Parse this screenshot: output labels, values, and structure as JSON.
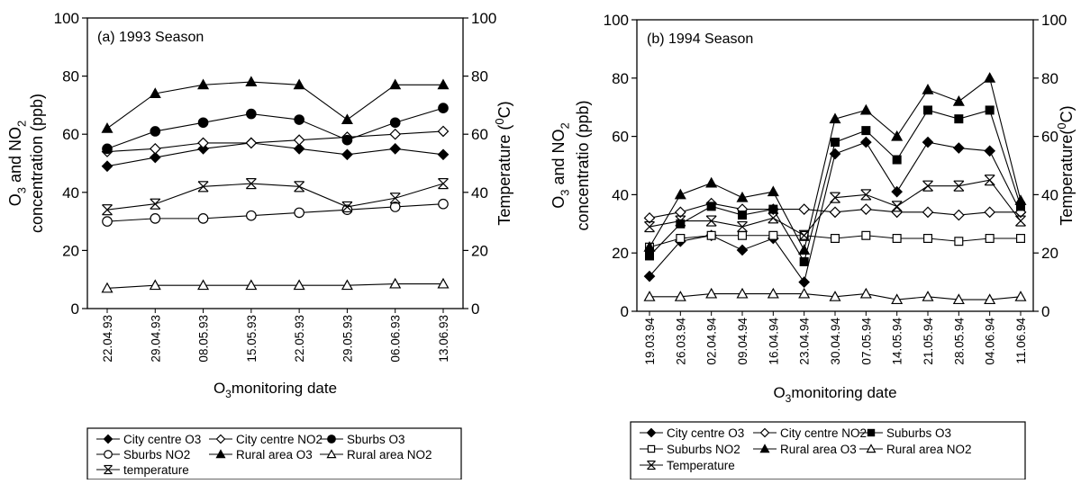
{
  "chart_data": [
    {
      "type": "line",
      "title": "(a) 1993 Season",
      "xlabel": "O3monitoring date",
      "ylabel_line1": "O3 and NO2",
      "ylabel_line2": "concentration (ppb)",
      "y2label": "Temperature (0C)",
      "ylim": [
        0,
        100
      ],
      "y2lim": [
        0,
        100
      ],
      "yticks": [
        0,
        20,
        40,
        60,
        80,
        100
      ],
      "grid": false,
      "legend_position": "bottom",
      "categories": [
        "22.04.93",
        "29.04.93",
        "08.05.93",
        "15.05.93",
        "22.05.93",
        "29.05.93",
        "06.06.93",
        "13.06.93"
      ],
      "series": [
        {
          "name": "City centre O3",
          "marker": "diamond-filled",
          "values": [
            49,
            52,
            55,
            57,
            55,
            53,
            55,
            53
          ]
        },
        {
          "name": "City centre NO2",
          "marker": "diamond-open",
          "values": [
            54,
            55,
            57,
            57,
            58,
            59,
            60,
            61
          ]
        },
        {
          "name": "Sburbs O3",
          "marker": "circle-filled",
          "values": [
            55,
            61,
            64,
            67,
            65,
            58,
            64,
            69
          ]
        },
        {
          "name": "Sburbs NO2",
          "marker": "circle-open",
          "values": [
            30,
            31,
            31,
            32,
            33,
            34,
            35,
            36
          ]
        },
        {
          "name": "Rural area O3",
          "marker": "triangle-filled",
          "values": [
            62,
            74,
            77,
            78,
            77,
            65,
            77,
            77
          ]
        },
        {
          "name": "Rural area NO2",
          "marker": "triangle-open",
          "values": [
            7,
            8,
            8,
            8,
            8,
            8,
            8.5,
            8.5
          ]
        },
        {
          "name": "temperature",
          "marker": "star",
          "values": [
            34,
            36,
            42,
            43,
            42,
            35,
            38,
            43
          ]
        }
      ]
    },
    {
      "type": "line",
      "title": "(b) 1994 Season",
      "xlabel": "O3monitoring date",
      "ylabel_line1": "O3 and NO2",
      "ylabel_line2": "concentratio (ppb)",
      "y2label": "Temperature(0C)",
      "ylim": [
        0,
        100
      ],
      "y2lim": [
        0,
        100
      ],
      "yticks": [
        0,
        20,
        40,
        60,
        80,
        100
      ],
      "grid": false,
      "legend_position": "bottom",
      "categories": [
        "19.03.94",
        "26.03.94",
        "02.04.94",
        "09.04.94",
        "16.04.94",
        "23.04.94",
        "30.04.94",
        "07.05.94",
        "14.05.94",
        "21.05.94",
        "28.05.94",
        "04.06.94",
        "11.06.94"
      ],
      "series": [
        {
          "name": "City centre O3",
          "marker": "diamond-filled",
          "values": [
            12,
            24,
            26,
            21,
            25,
            10,
            54,
            58,
            41,
            58,
            56,
            55,
            34
          ]
        },
        {
          "name": "City centre NO2",
          "marker": "diamond-open",
          "values": [
            32,
            34,
            37,
            35,
            35,
            35,
            34,
            35,
            34,
            34,
            33,
            34,
            34
          ]
        },
        {
          "name": "Suburbs O3",
          "marker": "square-filled",
          "values": [
            19,
            30,
            36,
            33,
            35,
            17,
            58,
            62,
            52,
            69,
            66,
            69,
            36
          ]
        },
        {
          "name": "Suburbs NO2",
          "marker": "square-open",
          "values": [
            22,
            25,
            26,
            26,
            26,
            26,
            25,
            26,
            25,
            25,
            24,
            25,
            25
          ]
        },
        {
          "name": "Rural area O3",
          "marker": "triangle-filled",
          "values": [
            22,
            40,
            44,
            39,
            41,
            21,
            66,
            69,
            60,
            76,
            72,
            80,
            38
          ]
        },
        {
          "name": "Rural area NO2",
          "marker": "triangle-open",
          "values": [
            5,
            5,
            6,
            6,
            6,
            6,
            5,
            6,
            4,
            5,
            4,
            4,
            5
          ]
        },
        {
          "name": "Temperature",
          "marker": "star",
          "values": [
            29,
            31,
            31,
            29,
            32,
            26,
            39,
            40,
            36,
            43,
            43,
            45,
            31
          ]
        }
      ]
    }
  ],
  "legends": [
    {
      "rows": [
        [
          "City centre O3",
          "City centre NO2",
          "Sburbs O3"
        ],
        [
          "Sburbs NO2",
          "Rural area O3",
          "Rural area NO2"
        ],
        [
          "temperature"
        ]
      ]
    },
    {
      "rows": [
        [
          "City centre O3",
          "City centre NO2",
          "Suburbs O3"
        ],
        [
          "Suburbs NO2",
          "Rural area O3",
          "Rural area NO2"
        ],
        [
          "Temperature"
        ]
      ]
    }
  ]
}
